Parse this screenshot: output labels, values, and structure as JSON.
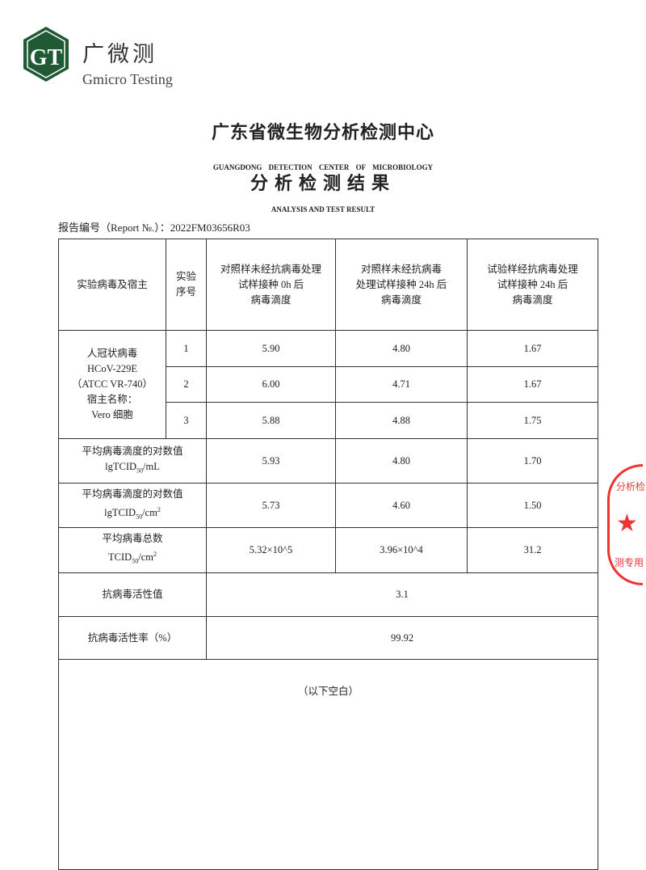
{
  "logo": {
    "mark": "GT",
    "name_cn": "广微测",
    "name_en": "Gmicro Testing",
    "color": "#1f5a34"
  },
  "watermark": "Gmicro Testing",
  "header": {
    "title_cn": "广东省微生物分析检测中心",
    "title_en": "GUANGDONG DETECTION CENTER OF MICROBIOLOGY",
    "subtitle_cn": "分析检测结果",
    "subtitle_en": "ANALYSIS AND TEST RESULT",
    "report_label": "报告编号（Report №.）：",
    "report_no": "2022FM03656R03"
  },
  "table": {
    "headers": [
      "实验病毒及宿主",
      "实验序号",
      "对照样未经抗病毒处理试样接种 0h 后病毒滴度",
      "对照样未经抗病毒处理试样接种 24h 后病毒滴度",
      "试验样经抗病毒处理试样接种 24h 后病毒滴度"
    ],
    "header_lines": [
      [
        "实验病毒及宿主"
      ],
      [
        "实验",
        "序号"
      ],
      [
        "对照样未经抗病毒处理",
        "试样接种 0h 后",
        "病毒滴度"
      ],
      [
        "对照样未经抗病毒",
        "处理试样接种 24h 后",
        "病毒滴度"
      ],
      [
        "试验样经抗病毒处理",
        "试样接种 24h 后",
        "病毒滴度"
      ]
    ],
    "virus_lines": [
      "人冠状病毒",
      "HCoV-229E",
      "（ATCC VR-740）",
      "宿主名称：",
      "Vero 细胞"
    ],
    "rows": [
      {
        "seq": "1",
        "c0h": "5.90",
        "c24h": "4.80",
        "t24h": "1.67"
      },
      {
        "seq": "2",
        "c0h": "6.00",
        "c24h": "4.71",
        "t24h": "1.67"
      },
      {
        "seq": "3",
        "c0h": "5.88",
        "c24h": "4.88",
        "t24h": "1.75"
      }
    ],
    "avg_ml": {
      "label": "平均病毒滴度的对数值",
      "unit": "lgTCID50/mL",
      "values": [
        "5.93",
        "4.80",
        "1.70"
      ]
    },
    "avg_cm2": {
      "label": "平均病毒滴度的对数值",
      "unit": "lgTCID50/cm2",
      "values": [
        "5.73",
        "4.60",
        "1.50"
      ]
    },
    "total": {
      "label": "平均病毒总数",
      "unit": "TCID50/cm2",
      "values": [
        "5.32×10^5",
        "3.96×10^4",
        "31.2"
      ]
    },
    "activity": {
      "label": "抗病毒活性值",
      "value": "3.1"
    },
    "rate": {
      "label": "抗病毒活性率（%）",
      "value": "99.92"
    },
    "blank_note": "（以下空白）"
  },
  "stamp": {
    "top": "分析检",
    "bottom": "测专用",
    "color": "#e33333"
  }
}
